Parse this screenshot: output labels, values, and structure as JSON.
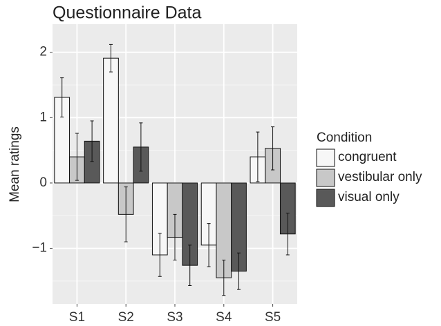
{
  "chart_data": {
    "type": "bar",
    "title": "Questionnaire Data",
    "y_label": "Mean ratings",
    "categories": [
      "S1",
      "S2",
      "S3",
      "S4",
      "S5"
    ],
    "legend_title": "Condition",
    "legend": "right",
    "grid": true,
    "ylim": [
      -1.85,
      2.43
    ],
    "yticks": [
      {
        "value": -1,
        "label": "−1"
      },
      0,
      1,
      2
    ],
    "series": [
      {
        "name": "congruent",
        "color": "#f7f7f7",
        "values": [
          1.31,
          1.91,
          -1.1,
          -0.95,
          0.4
        ],
        "errors": [
          0.3,
          0.21,
          0.33,
          0.33,
          0.38
        ]
      },
      {
        "name": "vestibular only",
        "color": "#c8c8c8",
        "values": [
          0.4,
          -0.48,
          -0.83,
          -1.45,
          0.53
        ],
        "errors": [
          0.36,
          0.42,
          0.35,
          0.27,
          0.33
        ]
      },
      {
        "name": "visual only",
        "color": "#595959",
        "values": [
          0.64,
          0.55,
          -1.26,
          -1.35,
          -0.78
        ],
        "errors": [
          0.31,
          0.37,
          0.31,
          0.28,
          0.32
        ]
      }
    ]
  }
}
